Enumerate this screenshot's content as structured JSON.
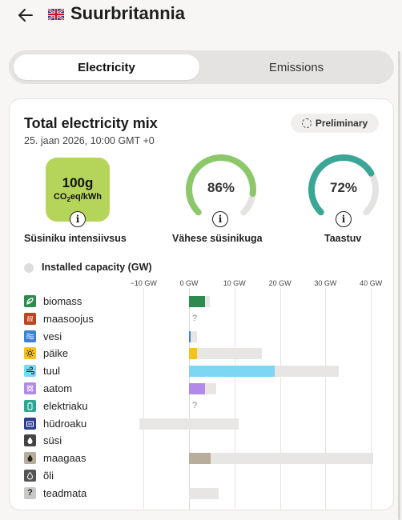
{
  "header": {
    "back_icon": "arrow-left-icon",
    "flag_icon": "uk-flag-icon",
    "country": "Suurbritannia"
  },
  "tabs": [
    {
      "label": "Electricity",
      "active": true
    },
    {
      "label": "Emissions",
      "active": false
    }
  ],
  "card": {
    "title": "Total electricity mix",
    "date": "25. jaan 2026, 10:00 GMT +0",
    "badge": "Preliminary",
    "intensity": {
      "value": "100g",
      "unit_main": "CO",
      "unit_sub": "2",
      "unit_rest": "eq/kWh",
      "label": "Süsiniku intensiivsus",
      "color": "#b5d45a"
    },
    "low_carbon": {
      "value": "86%",
      "fraction": 0.86,
      "label": "Vähese süsinikuga",
      "color": "#8cc86a"
    },
    "renewable": {
      "value": "72%",
      "fraction": 0.72,
      "label": "Taastuv",
      "color": "#3aa695"
    },
    "legend_label": "Installed capacity (GW)"
  },
  "chart_data": {
    "type": "bar",
    "xlabel": "",
    "ticks": [
      "−10 GW",
      "0 GW",
      "10 GW",
      "20 GW",
      "30 GW",
      "40 GW"
    ],
    "tick_values": [
      -10,
      0,
      10,
      20,
      30,
      40
    ],
    "xlim": [
      -11,
      41
    ],
    "rows": [
      {
        "name": "biomass",
        "icon": "biomass-icon",
        "color": "#2e8a4f",
        "generation": 3.5,
        "capacity": [
          0,
          4.5
        ]
      },
      {
        "name": "maasoojus",
        "icon": "geothermal-icon",
        "color": "#b9461c",
        "generation": null,
        "capacity": null,
        "unknown": "?"
      },
      {
        "name": "vesi",
        "icon": "hydro-icon",
        "color": "#3b82d6",
        "generation": 0.4,
        "capacity": [
          0,
          1.8
        ]
      },
      {
        "name": "päike",
        "icon": "solar-icon",
        "color": "#f5c21b",
        "generation": 1.8,
        "capacity": [
          0,
          16
        ]
      },
      {
        "name": "tuul",
        "icon": "wind-icon",
        "color": "#7dd6f2",
        "generation": 18.8,
        "capacity": [
          0,
          33
        ]
      },
      {
        "name": "aatom",
        "icon": "nuclear-icon",
        "color": "#b08ae6",
        "generation": 3.5,
        "capacity": [
          0,
          6
        ]
      },
      {
        "name": "elektriaku",
        "icon": "battery-icon",
        "color": "#2aa892",
        "generation": null,
        "capacity": null,
        "unknown": "?"
      },
      {
        "name": "hüdroaku",
        "icon": "pumped-hydro-icon",
        "color": "#2c3f8f",
        "generation": null,
        "capacity": [
          -11,
          11
        ]
      },
      {
        "name": "süsi",
        "icon": "coal-icon",
        "color": "#444444",
        "generation": null,
        "capacity": null
      },
      {
        "name": "maagaas",
        "icon": "gas-icon",
        "color": "#b7ad9a",
        "generation": 4.8,
        "capacity": [
          0,
          40.5
        ]
      },
      {
        "name": "õli",
        "icon": "oil-icon",
        "color": "#555555",
        "generation": null,
        "capacity": null
      },
      {
        "name": "teadmata",
        "icon": "unknown-icon",
        "color": "#999999",
        "generation": null,
        "capacity": [
          0,
          6.5
        ]
      }
    ]
  }
}
